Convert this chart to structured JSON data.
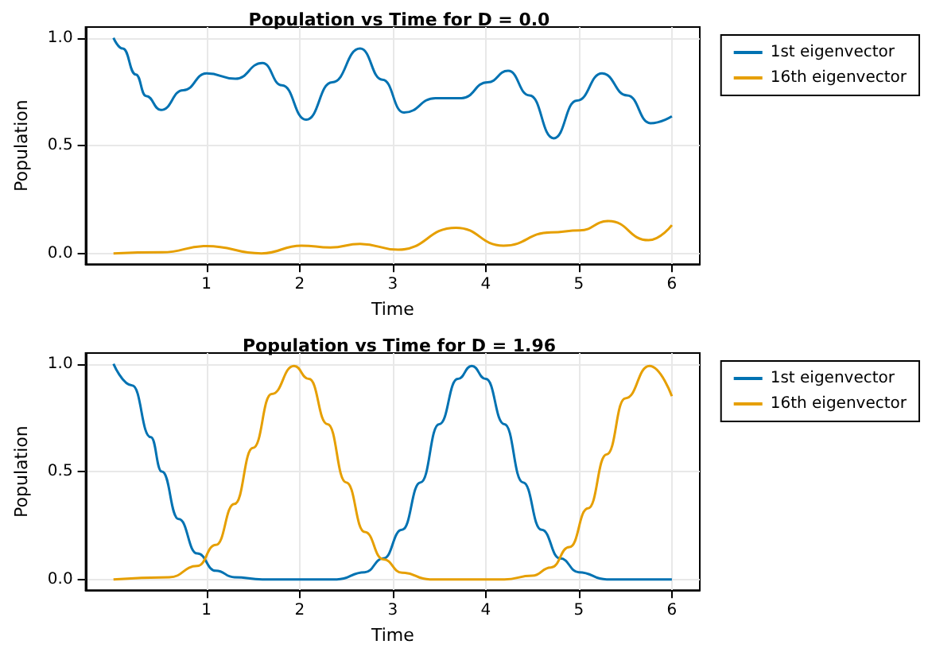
{
  "chart_data": [
    {
      "type": "line",
      "title": "Population vs Time for D = 0.0",
      "xlabel": "Time",
      "ylabel": "Population",
      "xlim": [
        -0.3,
        6.3
      ],
      "ylim": [
        -0.05,
        1.05
      ],
      "xticks": [
        1,
        2,
        3,
        4,
        5,
        6
      ],
      "yticks": [
        {
          "value": 0,
          "label": "0.0"
        },
        {
          "value": 0.5,
          "label": "0.5"
        },
        {
          "value": 1,
          "label": "1.0"
        }
      ],
      "grid": true,
      "legend": "top right",
      "marker": "none",
      "line_style": "solid",
      "series": [
        {
          "name": "1st eigenvector",
          "color": "#0072b2",
          "x": [
            0,
            0.1,
            0.24,
            0.35,
            0.51,
            0.75,
            1.0,
            1.31,
            1.6,
            1.81,
            2.07,
            2.35,
            2.65,
            2.89,
            3.12,
            3.46,
            3.74,
            4.02,
            4.24,
            4.47,
            4.73,
            4.98,
            5.25,
            5.52,
            5.77,
            6.0
          ],
          "values": [
            1.0,
            0.95,
            0.83,
            0.73,
            0.665,
            0.757,
            0.835,
            0.81,
            0.883,
            0.78,
            0.62,
            0.794,
            0.95,
            0.806,
            0.653,
            0.72,
            0.72,
            0.794,
            0.847,
            0.733,
            0.534,
            0.709,
            0.835,
            0.733,
            0.604,
            0.636
          ]
        },
        {
          "name": "16th eigenvector",
          "color": "#e69f00",
          "x": [
            0,
            0.52,
            1.0,
            1.59,
            2.02,
            2.33,
            2.65,
            3.06,
            3.68,
            4.19,
            4.7,
            5.01,
            5.32,
            5.75,
            6.0
          ],
          "values": [
            0,
            0.005,
            0.034,
            0,
            0.036,
            0.027,
            0.044,
            0.017,
            0.119,
            0.036,
            0.097,
            0.107,
            0.15,
            0.061,
            0.131
          ]
        }
      ]
    },
    {
      "type": "line",
      "title": "Population vs Time for D = 1.96",
      "xlabel": "Time",
      "ylabel": "Population",
      "xlim": [
        -0.3,
        6.3
      ],
      "ylim": [
        -0.05,
        1.05
      ],
      "xticks": [
        1,
        2,
        3,
        4,
        5,
        6
      ],
      "yticks": [
        {
          "value": 0,
          "label": "0.0"
        },
        {
          "value": 0.5,
          "label": "0.5"
        },
        {
          "value": 1,
          "label": "1.0"
        }
      ],
      "grid": true,
      "legend": "top right",
      "marker": "none",
      "line_style": "solid",
      "series": [
        {
          "name": "1st eigenvector",
          "color": "#0072b2",
          "x": [
            0,
            0.2,
            0.4,
            0.52,
            0.7,
            0.9,
            1.1,
            1.3,
            1.6,
            2.0,
            2.4,
            2.7,
            2.9,
            3.1,
            3.3,
            3.5,
            3.7,
            3.85,
            4.0,
            4.2,
            4.4,
            4.6,
            4.8,
            5.0,
            5.3,
            5.6,
            6.0
          ],
          "values": [
            1.0,
            0.9,
            0.66,
            0.5,
            0.28,
            0.12,
            0.04,
            0.01,
            0,
            0,
            0,
            0.033,
            0.097,
            0.23,
            0.45,
            0.72,
            0.93,
            0.99,
            0.93,
            0.72,
            0.45,
            0.23,
            0.097,
            0.033,
            0,
            0,
            0
          ]
        },
        {
          "name": "16th eigenvector",
          "color": "#e69f00",
          "x": [
            0,
            0.6,
            0.9,
            1.1,
            1.3,
            1.5,
            1.7,
            1.94,
            2.1,
            2.3,
            2.5,
            2.7,
            2.9,
            3.1,
            3.4,
            3.8,
            4.2,
            4.5,
            4.7,
            4.9,
            5.1,
            5.3,
            5.5,
            5.76,
            6.0
          ],
          "values": [
            0,
            0.01,
            0.062,
            0.16,
            0.35,
            0.61,
            0.86,
            0.99,
            0.93,
            0.72,
            0.45,
            0.22,
            0.093,
            0.031,
            0,
            0,
            0,
            0.017,
            0.055,
            0.15,
            0.33,
            0.58,
            0.84,
            0.99,
            0.85
          ]
        }
      ]
    }
  ]
}
